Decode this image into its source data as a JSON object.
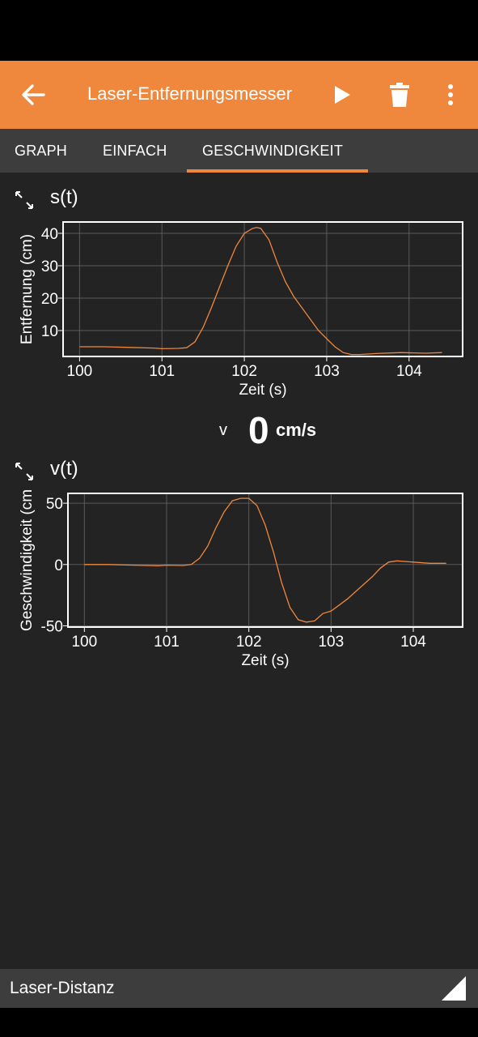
{
  "appbar": {
    "title": "Laser-Entfernungsmesser",
    "back_icon": "arrow-left-icon",
    "play_icon": "play-icon",
    "delete_icon": "trash-icon",
    "more_icon": "more-vert-icon",
    "color": "#ef873c"
  },
  "tabs": [
    {
      "label": "GRAPH",
      "active": false
    },
    {
      "label": "EINFACH",
      "active": false
    },
    {
      "label": "GESCHWINDIGKEIT",
      "active": true
    }
  ],
  "plots": {
    "position": {
      "title": "s(t)",
      "expand_icon": "expand-icon"
    },
    "velocity": {
      "title": "v(t)",
      "expand_icon": "expand-icon"
    }
  },
  "readout": {
    "symbol": "v",
    "value": "0",
    "unit": "cm/s"
  },
  "bottom": {
    "label": "Laser-Distanz",
    "corner_icon": "resize-corner-icon"
  },
  "chart_data": [
    {
      "type": "line",
      "xlabel": "Zeit (s)",
      "ylabel": "Entfernung (cm)",
      "xlim": [
        99.8,
        104.65
      ],
      "ylim": [
        2,
        43.5
      ],
      "xticks": [
        100,
        101,
        102,
        103,
        104
      ],
      "yticks": [
        10,
        20,
        30,
        40
      ],
      "grid": true,
      "line_color": "#ef873c",
      "series": [
        {
          "x": [
            100.0,
            100.3,
            100.6,
            100.9,
            101.0,
            101.2,
            101.3,
            101.4,
            101.5,
            101.6,
            101.7,
            101.8,
            101.9,
            102.0,
            102.1,
            102.15,
            102.2,
            102.3,
            102.4,
            102.5,
            102.6,
            102.7,
            102.8,
            102.9,
            103.0,
            103.1,
            103.2,
            103.3,
            103.4,
            103.6,
            103.9,
            104.2,
            104.4
          ],
          "y": [
            5.0,
            5.0,
            4.8,
            4.6,
            4.4,
            4.5,
            4.7,
            6.5,
            11.0,
            17.0,
            23.5,
            30.0,
            36.0,
            40.0,
            41.5,
            41.8,
            41.5,
            38.0,
            31.0,
            25.0,
            20.5,
            17.0,
            13.5,
            10.0,
            7.5,
            5.0,
            3.2,
            2.6,
            2.6,
            2.9,
            3.2,
            3.0,
            3.2
          ]
        }
      ]
    },
    {
      "type": "line",
      "xlabel": "Zeit (s)",
      "ylabel": "Geschwindigkeit (cm",
      "xlim": [
        99.8,
        104.6
      ],
      "ylim": [
        -51,
        58
      ],
      "xticks": [
        100,
        101,
        102,
        103,
        104
      ],
      "yticks": [
        -50,
        0,
        50
      ],
      "grid": true,
      "line_color": "#ef873c",
      "series": [
        {
          "x": [
            100.0,
            100.3,
            100.6,
            100.9,
            101.0,
            101.2,
            101.3,
            101.4,
            101.5,
            101.6,
            101.7,
            101.8,
            101.9,
            102.0,
            102.1,
            102.2,
            102.3,
            102.4,
            102.5,
            102.6,
            102.7,
            102.8,
            102.9,
            103.0,
            103.1,
            103.2,
            103.3,
            103.4,
            103.5,
            103.6,
            103.7,
            103.8,
            104.0,
            104.2,
            104.4
          ],
          "y": [
            0,
            0,
            -0.5,
            -1,
            -0.5,
            -0.8,
            0,
            5,
            15,
            30,
            43,
            52,
            54,
            54,
            48,
            32,
            10,
            -15,
            -35,
            -45,
            -47,
            -46,
            -40,
            -38,
            -33,
            -28,
            -22,
            -16,
            -10,
            -3,
            2,
            3,
            2,
            1,
            1
          ]
        }
      ]
    }
  ]
}
